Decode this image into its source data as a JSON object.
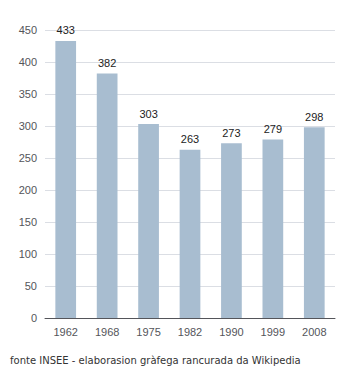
{
  "chart_data": {
    "type": "bar",
    "categories": [
      "1962",
      "1968",
      "1975",
      "1982",
      "1990",
      "1999",
      "2008"
    ],
    "values": [
      433,
      382,
      303,
      263,
      273,
      279,
      298
    ],
    "color": "#a8bdd0",
    "ylim": [
      0,
      450
    ],
    "yticks": [
      0,
      50,
      100,
      150,
      200,
      250,
      300,
      350,
      400,
      450
    ],
    "grid": true,
    "data_labels": true,
    "footnote": "fonte INSEE - elaborasion gràfega rancurada da Wikipedia"
  }
}
